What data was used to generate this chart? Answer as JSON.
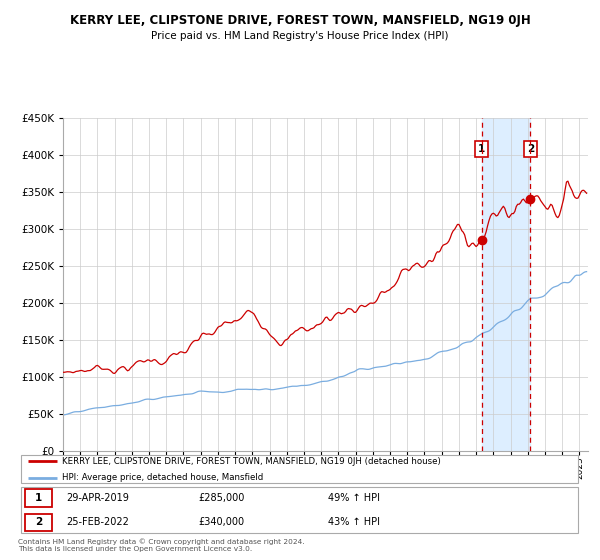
{
  "title": "KERRY LEE, CLIPSTONE DRIVE, FOREST TOWN, MANSFIELD, NG19 0JH",
  "subtitle": "Price paid vs. HM Land Registry's House Price Index (HPI)",
  "legend_line1": "KERRY LEE, CLIPSTONE DRIVE, FOREST TOWN, MANSFIELD, NG19 0JH (detached house)",
  "legend_line2": "HPI: Average price, detached house, Mansfield",
  "annotation1_date": "29-APR-2019",
  "annotation1_price": "£285,000",
  "annotation1_pct": "49% ↑ HPI",
  "annotation2_date": "25-FEB-2022",
  "annotation2_price": "£340,000",
  "annotation2_pct": "43% ↑ HPI",
  "footer": "Contains HM Land Registry data © Crown copyright and database right 2024.\nThis data is licensed under the Open Government Licence v3.0.",
  "red_color": "#cc0000",
  "blue_color": "#7aade0",
  "highlight_bg": "#ddeeff",
  "point1_x": 2019.33,
  "point1_y": 285000,
  "point2_x": 2022.15,
  "point2_y": 340000,
  "xmin": 1995.0,
  "xmax": 2025.5,
  "ymin": 0,
  "ymax": 450000,
  "yticks": [
    0,
    50000,
    100000,
    150000,
    200000,
    250000,
    300000,
    350000,
    400000,
    450000
  ]
}
